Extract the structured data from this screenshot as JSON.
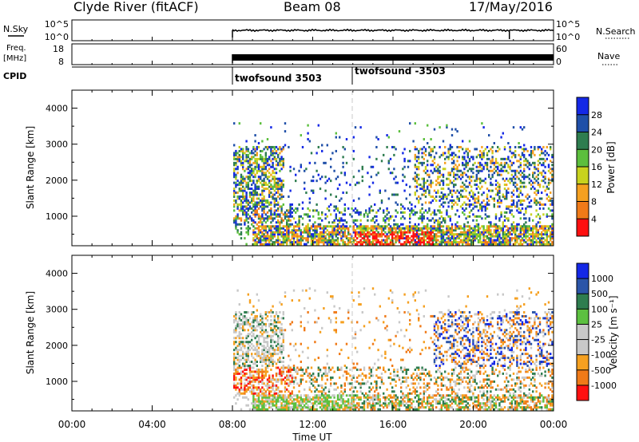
{
  "header": {
    "station": "Clyde River (fitACF)",
    "beam": "Beam 08",
    "date": "17/May/2016"
  },
  "top_panels": {
    "nsky": {
      "label": "N.Sky",
      "ticks": [
        "10^5",
        "10^0"
      ],
      "right_label": "N.Search",
      "right_ticks": [
        "10^5",
        "10^0"
      ]
    },
    "freq": {
      "label_line1": "Freq.",
      "label_line2": "[MHz]",
      "ticks": [
        "18",
        "8"
      ],
      "right_label": "Nave",
      "right_ticks": [
        "60",
        "0"
      ]
    },
    "cpid": {
      "label": "CPID",
      "segments": [
        {
          "start": 8.0,
          "label": "twofsound 3503"
        },
        {
          "start": 14.0,
          "label": "twofsound -3503"
        }
      ]
    }
  },
  "axes": {
    "ylabel": "Slant Range [km]",
    "yticks": [
      1000,
      2000,
      3000,
      4000
    ],
    "ylim": [
      180,
      4500
    ],
    "xlabel": "Time UT",
    "xticks": [
      "00:00",
      "04:00",
      "08:00",
      "12:00",
      "16:00",
      "20:00",
      "00:00"
    ],
    "xlim": [
      0,
      24
    ]
  },
  "colors": {
    "power": [
      "#1428e6",
      "#1f4fa8",
      "#2e7d4f",
      "#5cbf3d",
      "#c8d21e",
      "#f5a020",
      "#f07a18",
      "#ff1010"
    ],
    "velocity": [
      "#1428e6",
      "#2b55a8",
      "#2e7d4f",
      "#5cc040",
      "#c8c8c8",
      "#c8c8c8",
      "#f5a020",
      "#f07a18",
      "#ff1010"
    ]
  },
  "chart_data": [
    {
      "type": "heatmap",
      "name": "power",
      "colorbar_label": "Power [dB]",
      "colorbar_ticks": [
        "28",
        "24",
        "20",
        "16",
        "12",
        "8",
        "4"
      ],
      "data_start_ut": 8.0,
      "mode_change_ut": 14.0
    },
    {
      "type": "heatmap",
      "name": "velocity",
      "colorbar_label": "Velocity [m s⁻¹]",
      "colorbar_ticks": [
        "1000",
        "500",
        "100",
        "25",
        "-25",
        "-100",
        "-500",
        "-1000"
      ],
      "data_start_ut": 8.0,
      "mode_change_ut": 14.0
    }
  ]
}
